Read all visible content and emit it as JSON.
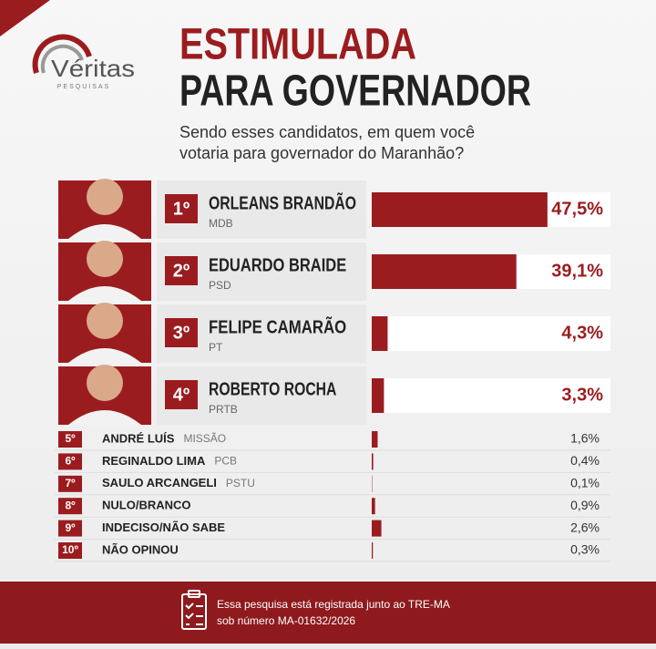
{
  "logo": {
    "name": "Véritas",
    "tagline": "PESQUISAS"
  },
  "chart_data": {
    "type": "bar",
    "title": [
      "ESTIMULADA",
      "PARA GOVERNADOR"
    ],
    "subtitle": [
      "Sendo esses candidatos, em quem você",
      "votaria para governador do Maranhão?"
    ],
    "ranks": [
      "1º",
      "2º",
      "3º",
      "4º",
      "5º",
      "6º",
      "7º",
      "8º",
      "9º",
      "10º"
    ],
    "categories": [
      "ORLEANS BRANDÃO",
      "EDUARDO BRAIDE",
      "FELIPE CAMARÃO",
      "ROBERTO ROCHA",
      "ANDRÉ LUÍS",
      "REGINALDO LIMA",
      "SAULO ARCANGELI",
      "NULO/BRANCO",
      "INDECISO/NÃO SABE",
      "NÃO OPINOU"
    ],
    "parties": [
      "MDB",
      "PSD",
      "PT",
      "PRTB",
      "MISSÃO",
      "PCB",
      "PSTU",
      null,
      null,
      null
    ],
    "values": [
      47.5,
      39.1,
      4.3,
      3.3,
      1.6,
      0.4,
      0.1,
      0.9,
      2.6,
      0.3
    ],
    "value_labels": [
      "47,5%",
      "39,1%",
      "4,3%",
      "3,3%",
      "1,6%",
      "0,4%",
      "0,1%",
      "0,9%",
      "2,6%",
      "0,3%"
    ],
    "color": "#9b1c1f"
  },
  "footer": [
    "Essa pesquisa está registrada junto ao TRE-MA",
    "sob número MA-01632/2026"
  ]
}
